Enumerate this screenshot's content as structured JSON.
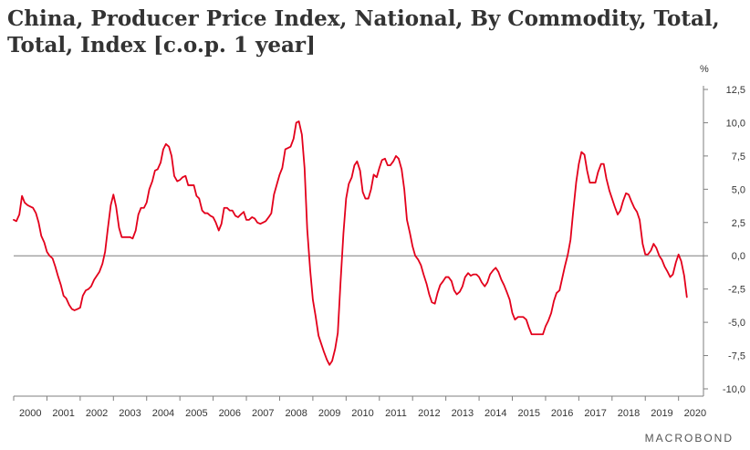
{
  "header": {
    "title": "China, Producer Price Index, National, By Commodity, Total, Total, Index [c.o.p. 1 year]"
  },
  "brand": "MACROBOND",
  "colors": {
    "series": "#e3001b",
    "axis": "#7f7f7f",
    "text": "#333333"
  },
  "chart_data": {
    "type": "line",
    "title": "China, Producer Price Index, National, By Commodity, Total, Total, Index [c.o.p. 1 year]",
    "ylabel": "%",
    "ylim": [
      -10,
      12.5
    ],
    "yticks": [
      "12,5",
      "10,0",
      "7,5",
      "5,0",
      "2,5",
      "0,0",
      "-2,5",
      "-5,0",
      "-7,5",
      "-10,0"
    ],
    "ytick_values": [
      12.5,
      10,
      7.5,
      5,
      2.5,
      0,
      -2.5,
      -5,
      -7.5,
      -10
    ],
    "xticks": [
      "2000",
      "2001",
      "2002",
      "2003",
      "2004",
      "2005",
      "2006",
      "2007",
      "2008",
      "2009",
      "2010",
      "2011",
      "2012",
      "2013",
      "2014",
      "2015",
      "2016",
      "2017",
      "2018",
      "2019",
      "2020"
    ],
    "xlim": [
      2000.0,
      2020.75
    ],
    "grid": false,
    "series": [
      {
        "values": [
          [
            2000.0,
            2.7
          ],
          [
            2000.08,
            2.6
          ],
          [
            2000.17,
            3.1
          ],
          [
            2000.25,
            4.5
          ],
          [
            2000.33,
            4.0
          ],
          [
            2000.42,
            3.8
          ],
          [
            2000.5,
            3.7
          ],
          [
            2000.58,
            3.6
          ],
          [
            2000.67,
            3.2
          ],
          [
            2000.75,
            2.5
          ],
          [
            2000.83,
            1.5
          ],
          [
            2000.92,
            1.0
          ],
          [
            2001.0,
            0.3
          ],
          [
            2001.08,
            0.0
          ],
          [
            2001.17,
            -0.2
          ],
          [
            2001.25,
            -0.8
          ],
          [
            2001.33,
            -1.5
          ],
          [
            2001.42,
            -2.2
          ],
          [
            2001.5,
            -3.0
          ],
          [
            2001.58,
            -3.2
          ],
          [
            2001.67,
            -3.7
          ],
          [
            2001.75,
            -4.0
          ],
          [
            2001.83,
            -4.1
          ],
          [
            2001.92,
            -4.0
          ],
          [
            2002.0,
            -3.9
          ],
          [
            2002.08,
            -3.0
          ],
          [
            2002.17,
            -2.6
          ],
          [
            2002.25,
            -2.5
          ],
          [
            2002.33,
            -2.3
          ],
          [
            2002.42,
            -1.8
          ],
          [
            2002.5,
            -1.5
          ],
          [
            2002.58,
            -1.2
          ],
          [
            2002.67,
            -0.6
          ],
          [
            2002.75,
            0.3
          ],
          [
            2002.83,
            2.0
          ],
          [
            2002.92,
            3.8
          ],
          [
            2003.0,
            4.6
          ],
          [
            2003.08,
            3.7
          ],
          [
            2003.17,
            2.1
          ],
          [
            2003.25,
            1.4
          ],
          [
            2003.33,
            1.4
          ],
          [
            2003.42,
            1.4
          ],
          [
            2003.5,
            1.4
          ],
          [
            2003.58,
            1.3
          ],
          [
            2003.67,
            1.9
          ],
          [
            2003.75,
            3.1
          ],
          [
            2003.83,
            3.6
          ],
          [
            2003.92,
            3.6
          ],
          [
            2004.0,
            4.0
          ],
          [
            2004.08,
            5.0
          ],
          [
            2004.17,
            5.6
          ],
          [
            2004.25,
            6.4
          ],
          [
            2004.33,
            6.5
          ],
          [
            2004.42,
            7.0
          ],
          [
            2004.5,
            8.0
          ],
          [
            2004.58,
            8.4
          ],
          [
            2004.67,
            8.2
          ],
          [
            2004.75,
            7.5
          ],
          [
            2004.83,
            6.0
          ],
          [
            2004.92,
            5.6
          ],
          [
            2005.0,
            5.7
          ],
          [
            2005.08,
            5.9
          ],
          [
            2005.17,
            6.0
          ],
          [
            2005.25,
            5.3
          ],
          [
            2005.33,
            5.3
          ],
          [
            2005.42,
            5.3
          ],
          [
            2005.5,
            4.5
          ],
          [
            2005.58,
            4.3
          ],
          [
            2005.67,
            3.4
          ],
          [
            2005.75,
            3.2
          ],
          [
            2005.83,
            3.2
          ],
          [
            2005.92,
            3.0
          ],
          [
            2006.0,
            2.9
          ],
          [
            2006.08,
            2.5
          ],
          [
            2006.17,
            1.9
          ],
          [
            2006.25,
            2.4
          ],
          [
            2006.33,
            3.6
          ],
          [
            2006.42,
            3.6
          ],
          [
            2006.5,
            3.4
          ],
          [
            2006.58,
            3.4
          ],
          [
            2006.67,
            3.0
          ],
          [
            2006.75,
            2.9
          ],
          [
            2006.83,
            3.1
          ],
          [
            2006.92,
            3.3
          ],
          [
            2007.0,
            2.7
          ],
          [
            2007.08,
            2.7
          ],
          [
            2007.17,
            2.9
          ],
          [
            2007.25,
            2.8
          ],
          [
            2007.33,
            2.5
          ],
          [
            2007.42,
            2.4
          ],
          [
            2007.5,
            2.5
          ],
          [
            2007.58,
            2.6
          ],
          [
            2007.67,
            2.9
          ],
          [
            2007.75,
            3.2
          ],
          [
            2007.83,
            4.6
          ],
          [
            2007.92,
            5.4
          ],
          [
            2008.0,
            6.1
          ],
          [
            2008.08,
            6.6
          ],
          [
            2008.17,
            8.0
          ],
          [
            2008.25,
            8.1
          ],
          [
            2008.33,
            8.2
          ],
          [
            2008.42,
            8.8
          ],
          [
            2008.5,
            10.0
          ],
          [
            2008.58,
            10.1
          ],
          [
            2008.67,
            9.1
          ],
          [
            2008.75,
            6.6
          ],
          [
            2008.83,
            2.0
          ],
          [
            2008.92,
            -1.1
          ],
          [
            2009.0,
            -3.3
          ],
          [
            2009.08,
            -4.5
          ],
          [
            2009.17,
            -6.0
          ],
          [
            2009.25,
            -6.6
          ],
          [
            2009.33,
            -7.2
          ],
          [
            2009.42,
            -7.8
          ],
          [
            2009.5,
            -8.2
          ],
          [
            2009.58,
            -7.9
          ],
          [
            2009.67,
            -7.0
          ],
          [
            2009.75,
            -5.8
          ],
          [
            2009.83,
            -2.1
          ],
          [
            2009.92,
            1.7
          ],
          [
            2010.0,
            4.3
          ],
          [
            2010.08,
            5.4
          ],
          [
            2010.17,
            5.9
          ],
          [
            2010.25,
            6.8
          ],
          [
            2010.33,
            7.1
          ],
          [
            2010.42,
            6.4
          ],
          [
            2010.5,
            4.8
          ],
          [
            2010.58,
            4.3
          ],
          [
            2010.67,
            4.3
          ],
          [
            2010.75,
            5.0
          ],
          [
            2010.83,
            6.1
          ],
          [
            2010.92,
            5.9
          ],
          [
            2011.0,
            6.6
          ],
          [
            2011.08,
            7.2
          ],
          [
            2011.17,
            7.3
          ],
          [
            2011.25,
            6.8
          ],
          [
            2011.33,
            6.8
          ],
          [
            2011.42,
            7.1
          ],
          [
            2011.5,
            7.5
          ],
          [
            2011.58,
            7.3
          ],
          [
            2011.67,
            6.5
          ],
          [
            2011.75,
            5.0
          ],
          [
            2011.83,
            2.7
          ],
          [
            2011.92,
            1.7
          ],
          [
            2012.0,
            0.7
          ],
          [
            2012.08,
            0.0
          ],
          [
            2012.17,
            -0.3
          ],
          [
            2012.25,
            -0.7
          ],
          [
            2012.33,
            -1.4
          ],
          [
            2012.42,
            -2.1
          ],
          [
            2012.5,
            -2.9
          ],
          [
            2012.58,
            -3.5
          ],
          [
            2012.67,
            -3.6
          ],
          [
            2012.75,
            -2.8
          ],
          [
            2012.83,
            -2.2
          ],
          [
            2012.92,
            -1.9
          ],
          [
            2013.0,
            -1.6
          ],
          [
            2013.08,
            -1.6
          ],
          [
            2013.17,
            -1.9
          ],
          [
            2013.25,
            -2.6
          ],
          [
            2013.33,
            -2.9
          ],
          [
            2013.42,
            -2.7
          ],
          [
            2013.5,
            -2.3
          ],
          [
            2013.58,
            -1.6
          ],
          [
            2013.67,
            -1.3
          ],
          [
            2013.75,
            -1.5
          ],
          [
            2013.83,
            -1.4
          ],
          [
            2013.92,
            -1.4
          ],
          [
            2014.0,
            -1.6
          ],
          [
            2014.08,
            -2.0
          ],
          [
            2014.17,
            -2.3
          ],
          [
            2014.25,
            -2.0
          ],
          [
            2014.33,
            -1.4
          ],
          [
            2014.42,
            -1.1
          ],
          [
            2014.5,
            -0.9
          ],
          [
            2014.58,
            -1.2
          ],
          [
            2014.67,
            -1.8
          ],
          [
            2014.75,
            -2.2
          ],
          [
            2014.83,
            -2.7
          ],
          [
            2014.92,
            -3.3
          ],
          [
            2015.0,
            -4.3
          ],
          [
            2015.08,
            -4.8
          ],
          [
            2015.17,
            -4.6
          ],
          [
            2015.25,
            -4.6
          ],
          [
            2015.33,
            -4.6
          ],
          [
            2015.42,
            -4.8
          ],
          [
            2015.5,
            -5.4
          ],
          [
            2015.58,
            -5.9
          ],
          [
            2015.67,
            -5.9
          ],
          [
            2015.75,
            -5.9
          ],
          [
            2015.83,
            -5.9
          ],
          [
            2015.92,
            -5.9
          ],
          [
            2016.0,
            -5.3
          ],
          [
            2016.08,
            -4.9
          ],
          [
            2016.17,
            -4.3
          ],
          [
            2016.25,
            -3.4
          ],
          [
            2016.33,
            -2.8
          ],
          [
            2016.42,
            -2.6
          ],
          [
            2016.5,
            -1.7
          ],
          [
            2016.58,
            -0.8
          ],
          [
            2016.67,
            0.1
          ],
          [
            2016.75,
            1.2
          ],
          [
            2016.83,
            3.3
          ],
          [
            2016.92,
            5.5
          ],
          [
            2017.0,
            6.9
          ],
          [
            2017.08,
            7.8
          ],
          [
            2017.17,
            7.6
          ],
          [
            2017.25,
            6.4
          ],
          [
            2017.33,
            5.5
          ],
          [
            2017.42,
            5.5
          ],
          [
            2017.5,
            5.5
          ],
          [
            2017.58,
            6.3
          ],
          [
            2017.67,
            6.9
          ],
          [
            2017.75,
            6.9
          ],
          [
            2017.83,
            5.8
          ],
          [
            2017.92,
            4.9
          ],
          [
            2018.0,
            4.3
          ],
          [
            2018.08,
            3.7
          ],
          [
            2018.17,
            3.1
          ],
          [
            2018.25,
            3.4
          ],
          [
            2018.33,
            4.1
          ],
          [
            2018.42,
            4.7
          ],
          [
            2018.5,
            4.6
          ],
          [
            2018.58,
            4.1
          ],
          [
            2018.67,
            3.6
          ],
          [
            2018.75,
            3.3
          ],
          [
            2018.83,
            2.7
          ],
          [
            2018.92,
            0.9
          ],
          [
            2019.0,
            0.1
          ],
          [
            2019.08,
            0.1
          ],
          [
            2019.17,
            0.4
          ],
          [
            2019.25,
            0.9
          ],
          [
            2019.33,
            0.6
          ],
          [
            2019.42,
            0.0
          ],
          [
            2019.5,
            -0.3
          ],
          [
            2019.58,
            -0.8
          ],
          [
            2019.67,
            -1.2
          ],
          [
            2019.75,
            -1.6
          ],
          [
            2019.83,
            -1.4
          ],
          [
            2019.92,
            -0.5
          ],
          [
            2020.0,
            0.1
          ],
          [
            2020.08,
            -0.4
          ],
          [
            2020.17,
            -1.5
          ],
          [
            2020.25,
            -3.1
          ]
        ]
      }
    ]
  }
}
